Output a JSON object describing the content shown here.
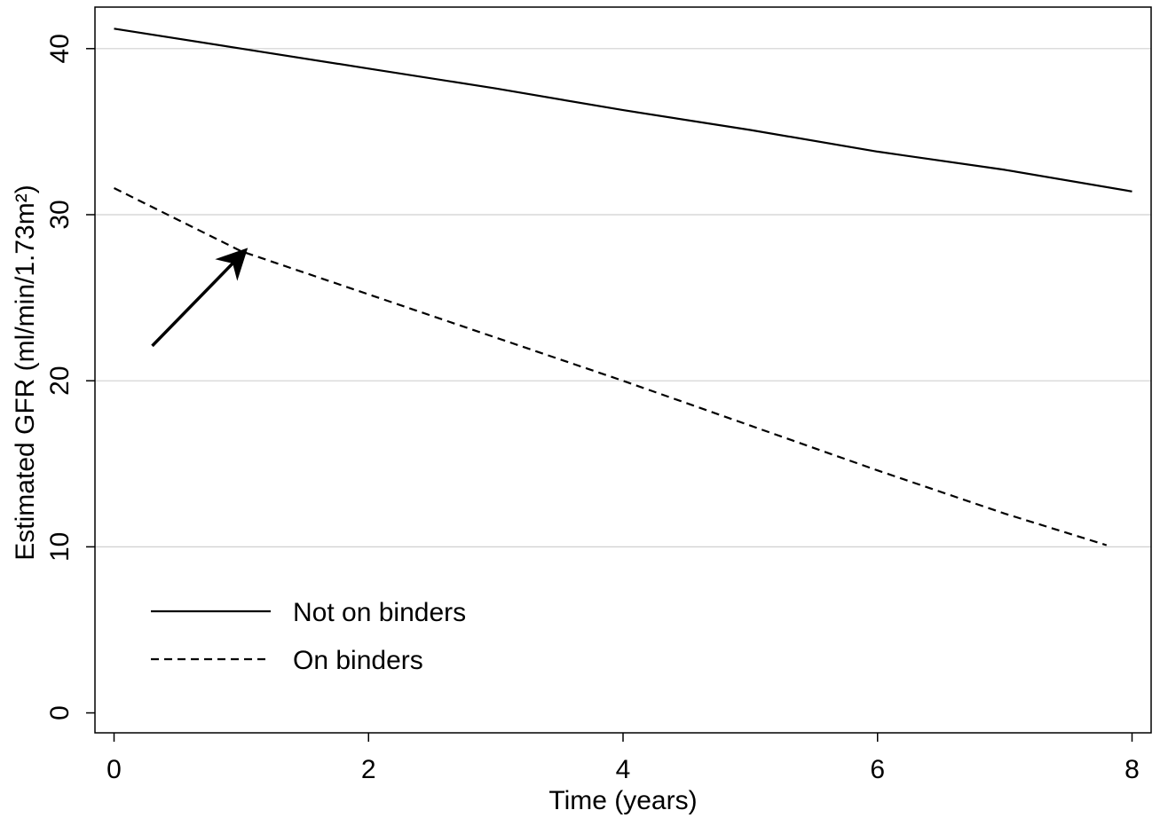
{
  "chart_data": {
    "type": "line",
    "xlabel": "Time (years)",
    "ylabel": "Estimated GFR (ml/min/1.73m²)",
    "xlim": [
      -0.15,
      8.15
    ],
    "ylim": [
      -1.2,
      42.5
    ],
    "x_ticks": [
      0,
      2,
      4,
      6,
      8
    ],
    "y_ticks": [
      0,
      10,
      20,
      30,
      40
    ],
    "grid": {
      "horizontal": true,
      "vertical": false
    },
    "legend_position": "bottom-left",
    "series": [
      {
        "name": "Not on binders",
        "line_style": "solid",
        "color": "#000000",
        "x": [
          0,
          1,
          2,
          3,
          4,
          5,
          6,
          7,
          8
        ],
        "y": [
          41.2,
          40.0,
          38.8,
          37.6,
          36.3,
          35.1,
          33.8,
          32.7,
          31.4
        ]
      },
      {
        "name": "On binders",
        "line_style": "dashed",
        "color": "#000000",
        "x": [
          0,
          1,
          2,
          3,
          4,
          5,
          6,
          7,
          7.8
        ],
        "y": [
          31.6,
          27.8,
          25.2,
          22.6,
          20.0,
          17.3,
          14.6,
          12.0,
          10.1
        ]
      }
    ],
    "annotations": [
      {
        "type": "arrow",
        "from": [
          0.3,
          22.1
        ],
        "to": [
          1.0,
          27.6
        ]
      }
    ]
  }
}
